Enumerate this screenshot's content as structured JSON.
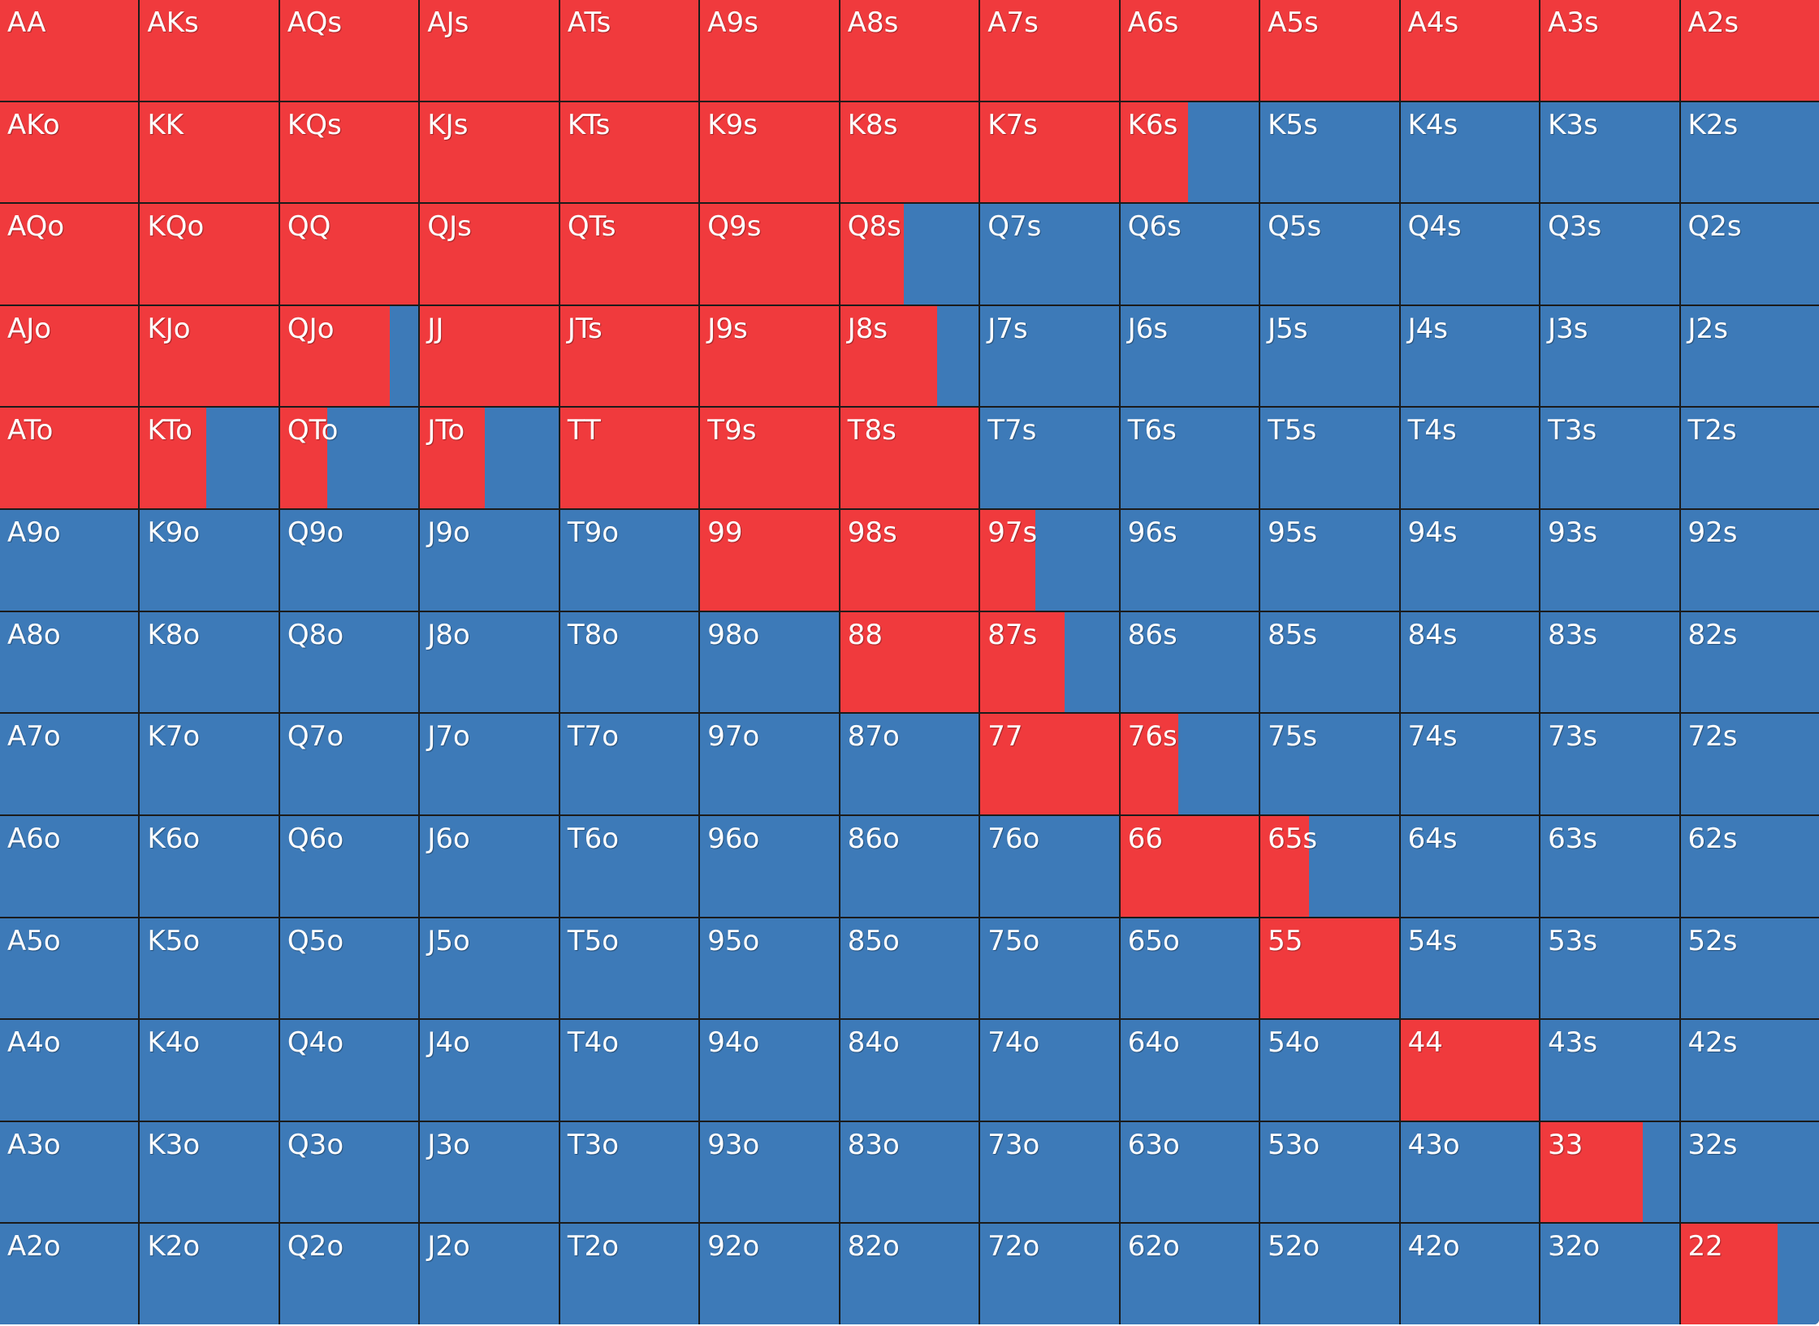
{
  "colors": {
    "raise": "#f03a3d",
    "fold": "#3d7ab8",
    "border": "#1b1b1b",
    "text": "#ffffff"
  },
  "grid": [
    [
      [
        "AA",
        1
      ],
      [
        "AKs",
        1
      ],
      [
        "AQs",
        1
      ],
      [
        "AJs",
        1
      ],
      [
        "ATs",
        1
      ],
      [
        "A9s",
        1
      ],
      [
        "A8s",
        1
      ],
      [
        "A7s",
        1
      ],
      [
        "A6s",
        1
      ],
      [
        "A5s",
        1
      ],
      [
        "A4s",
        1
      ],
      [
        "A3s",
        1
      ],
      [
        "A2s",
        1
      ]
    ],
    [
      [
        "AKo",
        1
      ],
      [
        "KK",
        1
      ],
      [
        "KQs",
        1
      ],
      [
        "KJs",
        1
      ],
      [
        "KTs",
        1
      ],
      [
        "K9s",
        1
      ],
      [
        "K8s",
        1
      ],
      [
        "K7s",
        1
      ],
      [
        "K6s",
        0.49
      ],
      [
        "K5s",
        0
      ],
      [
        "K4s",
        0
      ],
      [
        "K3s",
        0
      ],
      [
        "K2s",
        0
      ]
    ],
    [
      [
        "AQo",
        1
      ],
      [
        "KQo",
        1
      ],
      [
        "QQ",
        1
      ],
      [
        "QJs",
        1
      ],
      [
        "QTs",
        1
      ],
      [
        "Q9s",
        1
      ],
      [
        "Q8s",
        0.46
      ],
      [
        "Q7s",
        0
      ],
      [
        "Q6s",
        0
      ],
      [
        "Q5s",
        0
      ],
      [
        "Q4s",
        0
      ],
      [
        "Q3s",
        0
      ],
      [
        "Q2s",
        0
      ]
    ],
    [
      [
        "AJo",
        1
      ],
      [
        "KJo",
        1
      ],
      [
        "QJo",
        0.79
      ],
      [
        "JJ",
        1
      ],
      [
        "JTs",
        1
      ],
      [
        "J9s",
        1
      ],
      [
        "J8s",
        0.7
      ],
      [
        "J7s",
        0
      ],
      [
        "J6s",
        0
      ],
      [
        "J5s",
        0
      ],
      [
        "J4s",
        0
      ],
      [
        "J3s",
        0
      ],
      [
        "J2s",
        0
      ]
    ],
    [
      [
        "ATo",
        1
      ],
      [
        "KTo",
        0.48
      ],
      [
        "QTo",
        0.34
      ],
      [
        "JTo",
        0.47
      ],
      [
        "TT",
        1
      ],
      [
        "T9s",
        1
      ],
      [
        "T8s",
        1
      ],
      [
        "T7s",
        0
      ],
      [
        "T6s",
        0
      ],
      [
        "T5s",
        0
      ],
      [
        "T4s",
        0
      ],
      [
        "T3s",
        0
      ],
      [
        "T2s",
        0
      ]
    ],
    [
      [
        "A9o",
        0
      ],
      [
        "K9o",
        0
      ],
      [
        "Q9o",
        0
      ],
      [
        "J9o",
        0
      ],
      [
        "T9o",
        0
      ],
      [
        "99",
        1
      ],
      [
        "98s",
        1
      ],
      [
        "97s",
        0.4
      ],
      [
        "96s",
        0
      ],
      [
        "95s",
        0
      ],
      [
        "94s",
        0
      ],
      [
        "93s",
        0
      ],
      [
        "92s",
        0
      ]
    ],
    [
      [
        "A8o",
        0
      ],
      [
        "K8o",
        0
      ],
      [
        "Q8o",
        0
      ],
      [
        "J8o",
        0
      ],
      [
        "T8o",
        0
      ],
      [
        "98o",
        0
      ],
      [
        "88",
        1
      ],
      [
        "87s",
        0.61
      ],
      [
        "86s",
        0
      ],
      [
        "85s",
        0
      ],
      [
        "84s",
        0
      ],
      [
        "83s",
        0
      ],
      [
        "82s",
        0
      ]
    ],
    [
      [
        "A7o",
        0
      ],
      [
        "K7o",
        0
      ],
      [
        "Q7o",
        0
      ],
      [
        "J7o",
        0
      ],
      [
        "T7o",
        0
      ],
      [
        "97o",
        0
      ],
      [
        "87o",
        0
      ],
      [
        "77",
        1
      ],
      [
        "76s",
        0.42
      ],
      [
        "75s",
        0
      ],
      [
        "74s",
        0
      ],
      [
        "73s",
        0
      ],
      [
        "72s",
        0
      ]
    ],
    [
      [
        "A6o",
        0
      ],
      [
        "K6o",
        0
      ],
      [
        "Q6o",
        0
      ],
      [
        "J6o",
        0
      ],
      [
        "T6o",
        0
      ],
      [
        "96o",
        0
      ],
      [
        "86o",
        0
      ],
      [
        "76o",
        0
      ],
      [
        "66",
        1
      ],
      [
        "65s",
        0.35
      ],
      [
        "64s",
        0
      ],
      [
        "63s",
        0
      ],
      [
        "62s",
        0
      ]
    ],
    [
      [
        "A5o",
        0
      ],
      [
        "K5o",
        0
      ],
      [
        "Q5o",
        0
      ],
      [
        "J5o",
        0
      ],
      [
        "T5o",
        0
      ],
      [
        "95o",
        0
      ],
      [
        "85o",
        0
      ],
      [
        "75o",
        0
      ],
      [
        "65o",
        0
      ],
      [
        "55",
        1
      ],
      [
        "54s",
        0
      ],
      [
        "53s",
        0
      ],
      [
        "52s",
        0
      ]
    ],
    [
      [
        "A4o",
        0
      ],
      [
        "K4o",
        0
      ],
      [
        "Q4o",
        0
      ],
      [
        "J4o",
        0
      ],
      [
        "T4o",
        0
      ],
      [
        "94o",
        0
      ],
      [
        "84o",
        0
      ],
      [
        "74o",
        0
      ],
      [
        "64o",
        0
      ],
      [
        "54o",
        0
      ],
      [
        "44",
        1
      ],
      [
        "43s",
        0
      ],
      [
        "42s",
        0
      ]
    ],
    [
      [
        "A3o",
        0
      ],
      [
        "K3o",
        0
      ],
      [
        "Q3o",
        0
      ],
      [
        "J3o",
        0
      ],
      [
        "T3o",
        0
      ],
      [
        "93o",
        0
      ],
      [
        "83o",
        0
      ],
      [
        "73o",
        0
      ],
      [
        "63o",
        0
      ],
      [
        "53o",
        0
      ],
      [
        "43o",
        0
      ],
      [
        "33",
        0.74
      ],
      [
        "32s",
        0
      ]
    ],
    [
      [
        "A2o",
        0
      ],
      [
        "K2o",
        0
      ],
      [
        "Q2o",
        0
      ],
      [
        "J2o",
        0
      ],
      [
        "T2o",
        0
      ],
      [
        "92o",
        0
      ],
      [
        "82o",
        0
      ],
      [
        "72o",
        0
      ],
      [
        "62o",
        0
      ],
      [
        "52o",
        0
      ],
      [
        "42o",
        0
      ],
      [
        "32o",
        0
      ],
      [
        "22",
        0.7
      ]
    ]
  ]
}
